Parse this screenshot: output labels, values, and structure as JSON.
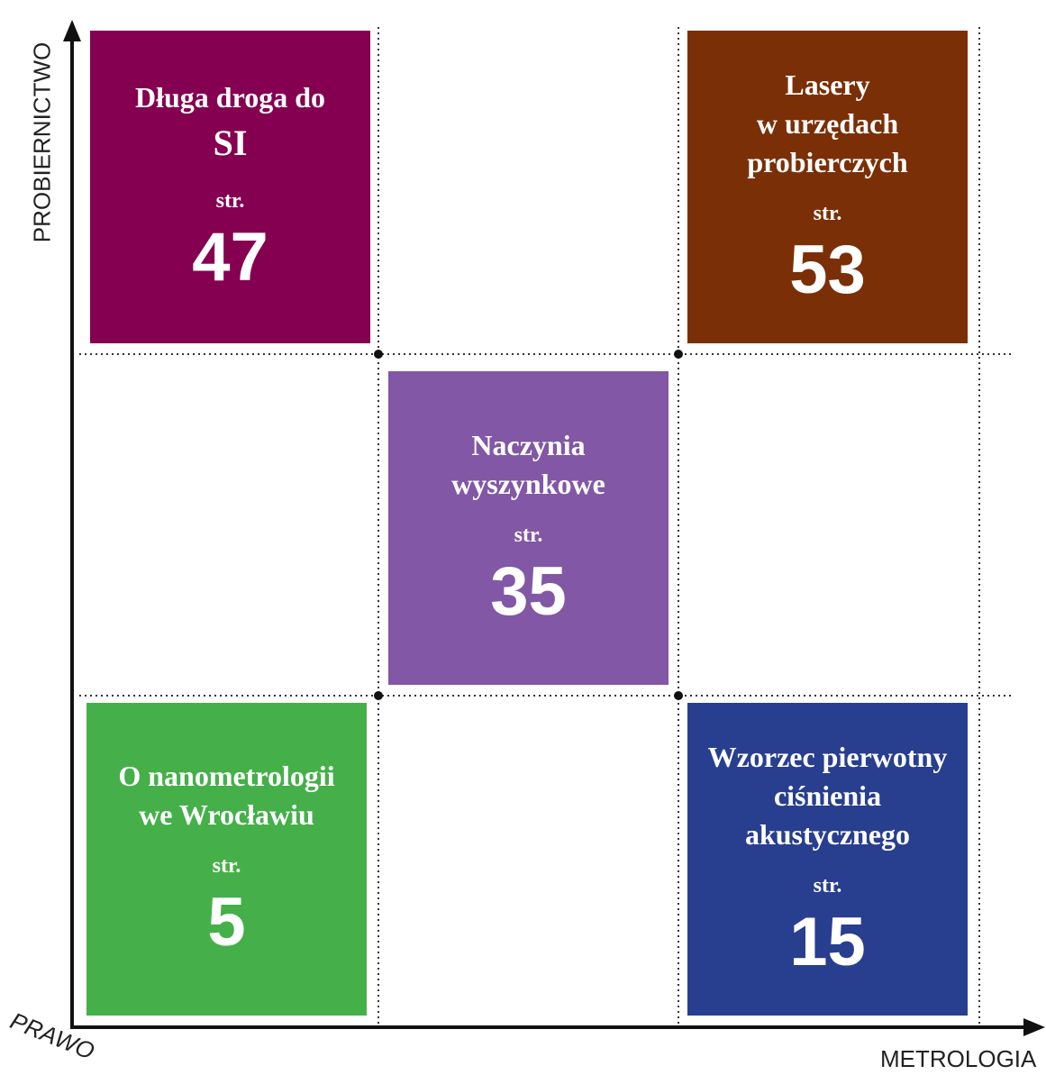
{
  "axes": {
    "y": "PROBIERNICTWO",
    "diagonal": "PRAWO",
    "x": "METROLOGIA"
  },
  "tiles": [
    {
      "title": [
        "Długa droga do",
        "SI"
      ],
      "page_prefix": "str.",
      "page": "47",
      "color": "#850050"
    },
    {
      "title": [
        "Lasery",
        "w urzędach",
        "probierczych"
      ],
      "page_prefix": "str.",
      "page": "53",
      "color": "#7b2f06"
    },
    {
      "title": [
        "Naczynia",
        "wyszynkowe"
      ],
      "page_prefix": "str.",
      "page": "35",
      "color": "#8257a5"
    },
    {
      "title": [
        "O nanometrologii",
        "we Wrocławiu"
      ],
      "page_prefix": "str.",
      "page": "5",
      "color": "#45b049"
    },
    {
      "title": [
        "Wzorzec pierwotny",
        "ciśnienia",
        "akustycznego"
      ],
      "page_prefix": "str.",
      "page": "15",
      "color": "#283e8f"
    }
  ]
}
